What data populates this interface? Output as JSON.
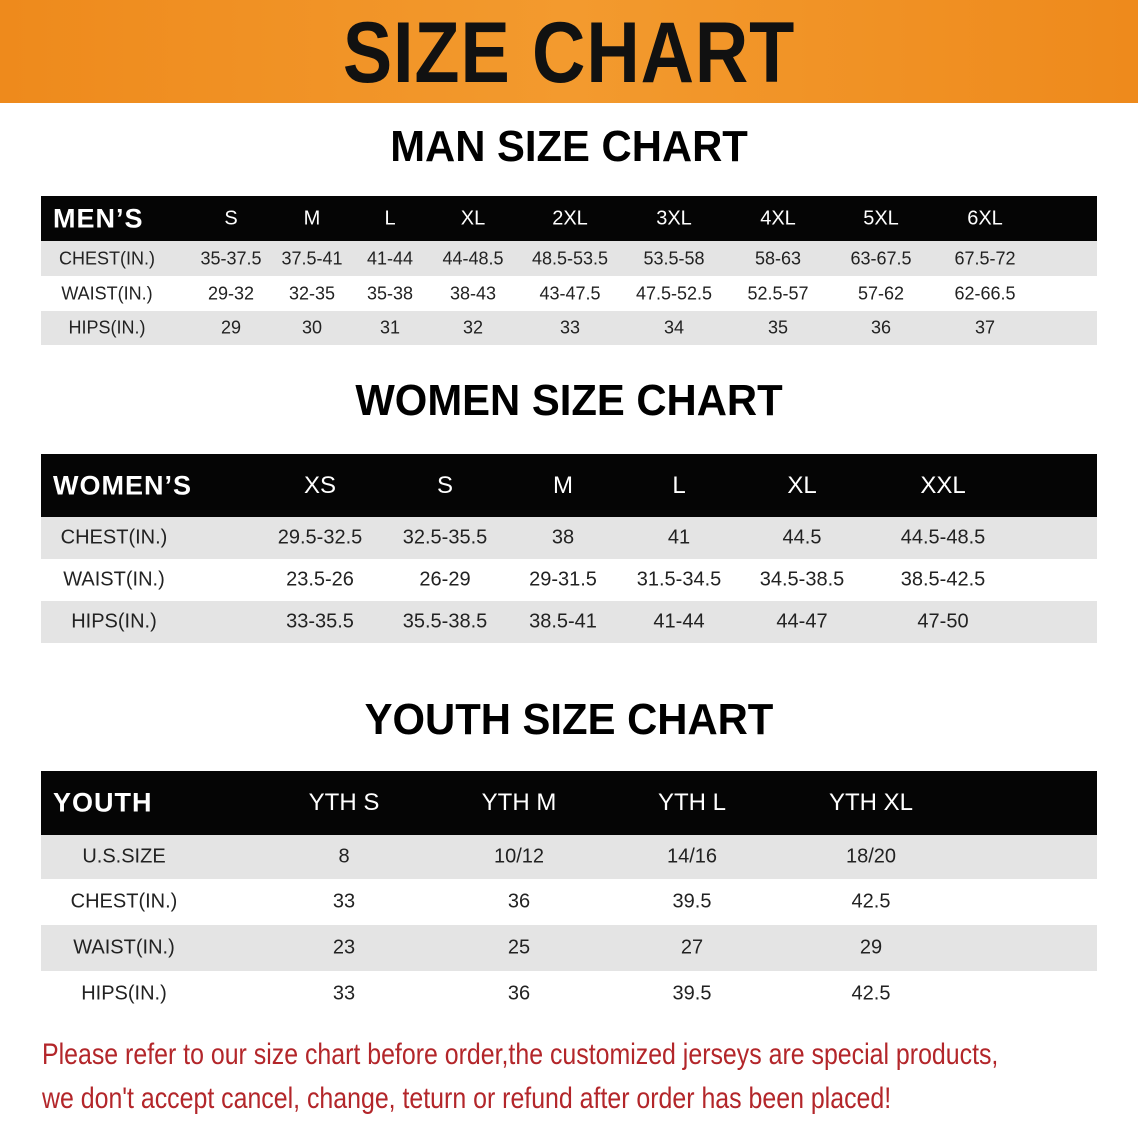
{
  "banner_title": "SIZE CHART",
  "men": {
    "title": "MAN SIZE CHART",
    "header_label": "MEN’S",
    "sizes": [
      "S",
      "M",
      "L",
      "XL",
      "2XL",
      "3XL",
      "4XL",
      "5XL",
      "6XL"
    ],
    "rows": [
      {
        "label": "CHEST(IN.)",
        "values": [
          "35-37.5",
          "37.5-41",
          "41-44",
          "44-48.5",
          "48.5-53.5",
          "53.5-58",
          "58-63",
          "63-67.5",
          "67.5-72"
        ]
      },
      {
        "label": "WAIST(IN.)",
        "values": [
          "29-32",
          "32-35",
          "35-38",
          "38-43",
          "43-47.5",
          "47.5-52.5",
          "52.5-57",
          "57-62",
          "62-66.5"
        ]
      },
      {
        "label": "HIPS(IN.)",
        "values": [
          "29",
          "30",
          "31",
          "32",
          "33",
          "34",
          "35",
          "36",
          "37"
        ]
      }
    ]
  },
  "women": {
    "title": "WOMEN SIZE CHART",
    "header_label": "WOMEN’S",
    "sizes": [
      "XS",
      "S",
      "M",
      "L",
      "XL",
      "XXL"
    ],
    "rows": [
      {
        "label": "CHEST(IN.)",
        "values": [
          "29.5-32.5",
          "32.5-35.5",
          "38",
          "41",
          "44.5",
          "44.5-48.5"
        ]
      },
      {
        "label": "WAIST(IN.)",
        "values": [
          "23.5-26",
          "26-29",
          "29-31.5",
          "31.5-34.5",
          "34.5-38.5",
          "38.5-42.5"
        ]
      },
      {
        "label": "HIPS(IN.)",
        "values": [
          "33-35.5",
          "35.5-38.5",
          "38.5-41",
          "41-44",
          "44-47",
          "47-50"
        ]
      }
    ]
  },
  "youth": {
    "title": "YOUTH SIZE CHART",
    "header_label": "YOUTH",
    "sizes": [
      "YTH S",
      "YTH M",
      "YTH L",
      "YTH XL"
    ],
    "rows": [
      {
        "label": "U.S.SIZE",
        "values": [
          "8",
          "10/12",
          "14/16",
          "18/20"
        ]
      },
      {
        "label": "CHEST(IN.)",
        "values": [
          "33",
          "36",
          "39.5",
          "42.5"
        ]
      },
      {
        "label": "WAIST(IN.)",
        "values": [
          "23",
          "25",
          "27",
          "29"
        ]
      },
      {
        "label": "HIPS(IN.)",
        "values": [
          "33",
          "36",
          "39.5",
          "42.5"
        ]
      }
    ]
  },
  "notice": {
    "line1": "Please refer to our size chart before order,the customized jerseys are special products,",
    "line2": "we don't accept cancel, change, teturn or refund after order has been placed!"
  },
  "colors": {
    "banner": "#f0901f",
    "header_bg": "#050505",
    "row_gray": "#e4e4e4",
    "notice": "#b3262a"
  }
}
